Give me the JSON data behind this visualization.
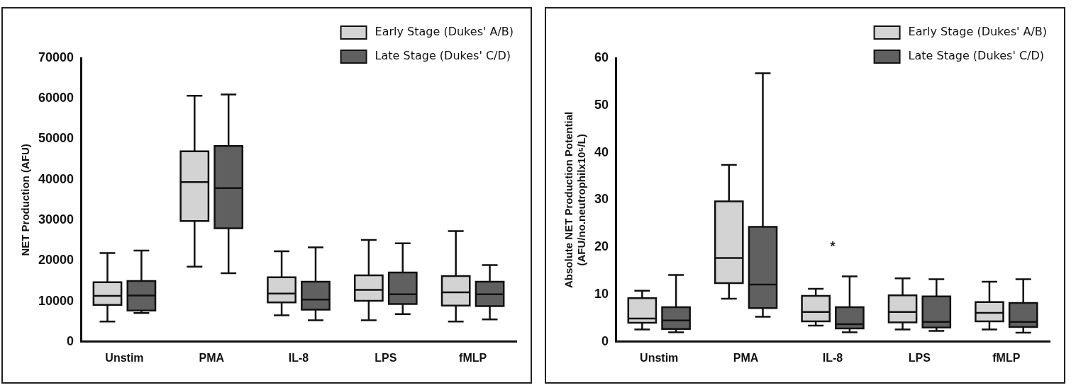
{
  "chart_data": [
    {
      "type": "box",
      "ylabel": "NET Production (AFU)",
      "categories": [
        "Unstim",
        "PMA",
        "IL-8",
        "LPS",
        "fMLP"
      ],
      "ylim": [
        0,
        70000
      ],
      "yticks": [
        0,
        10000,
        20000,
        30000,
        40000,
        50000,
        60000,
        70000
      ],
      "grid": false,
      "legend": "top right",
      "series": [
        {
          "name": "Early Stage (Dukes' A/B)",
          "color": "#d3d3d3",
          "boxes": [
            {
              "low": 5000,
              "q1": 9100,
              "median": 11300,
              "q3": 14700,
              "high": 21900
            },
            {
              "low": 18500,
              "q1": 29800,
              "median": 39400,
              "q3": 47000,
              "high": 60700
            },
            {
              "low": 6500,
              "q1": 9700,
              "median": 11900,
              "q3": 15900,
              "high": 22300
            },
            {
              "low": 5300,
              "q1": 10100,
              "median": 12800,
              "q3": 16400,
              "high": 25100
            },
            {
              "low": 5000,
              "q1": 8900,
              "median": 12200,
              "q3": 16200,
              "high": 27300
            }
          ]
        },
        {
          "name": "Late Stage (Dukes' C/D)",
          "color": "#606060",
          "boxes": [
            {
              "low": 7100,
              "q1": 7700,
              "median": 11400,
              "q3": 15000,
              "high": 22500
            },
            {
              "low": 16900,
              "q1": 28000,
              "median": 37900,
              "q3": 48300,
              "high": 61000
            },
            {
              "low": 5300,
              "q1": 7900,
              "median": 10400,
              "q3": 14800,
              "high": 23300
            },
            {
              "low": 6800,
              "q1": 9300,
              "median": 11700,
              "q3": 17100,
              "high": 24300
            },
            {
              "low": 5500,
              "q1": 8800,
              "median": 11700,
              "q3": 14800,
              "high": 18900
            }
          ]
        }
      ]
    },
    {
      "type": "box",
      "ylabel": "Absolute NET Production Potential\n(AFU/no.neutrophilx10⁵/L)",
      "categories": [
        "Unstim",
        "PMA",
        "IL-8",
        "LPS",
        "fMLP"
      ],
      "ylim": [
        0,
        60
      ],
      "yticks": [
        0,
        10,
        20,
        30,
        40,
        50,
        60
      ],
      "grid": false,
      "legend": "top right",
      "annotations": [
        "*"
      ],
      "series": [
        {
          "name": "Early Stage (Dukes' A/B)",
          "color": "#d3d3d3",
          "boxes": [
            {
              "low": 2.6,
              "q1": 4.0,
              "median": 4.9,
              "q3": 9.2,
              "high": 10.8
            },
            {
              "low": 9.1,
              "q1": 12.4,
              "median": 17.7,
              "q3": 29.7,
              "high": 37.4
            },
            {
              "low": 3.4,
              "q1": 4.3,
              "median": 6.3,
              "q3": 9.7,
              "high": 11.2
            },
            {
              "low": 2.6,
              "q1": 4.1,
              "median": 6.3,
              "q3": 9.8,
              "high": 13.4
            },
            {
              "low": 2.6,
              "q1": 4.3,
              "median": 6.1,
              "q3": 8.4,
              "high": 12.7
            }
          ]
        },
        {
          "name": "Late Stage (Dukes' C/D)",
          "color": "#606060",
          "boxes": [
            {
              "low": 2.0,
              "q1": 2.7,
              "median": 4.5,
              "q3": 7.3,
              "high": 14.1
            },
            {
              "low": 5.3,
              "q1": 7.1,
              "median": 12.1,
              "q3": 24.3,
              "high": 56.8
            },
            {
              "low": 2.0,
              "q1": 2.8,
              "median": 3.7,
              "q3": 7.3,
              "high": 13.8
            },
            {
              "low": 2.3,
              "q1": 3.0,
              "median": 4.2,
              "q3": 9.6,
              "high": 13.2
            },
            {
              "low": 1.9,
              "q1": 3.1,
              "median": 4.2,
              "q3": 8.2,
              "high": 13.2
            }
          ]
        }
      ]
    }
  ]
}
